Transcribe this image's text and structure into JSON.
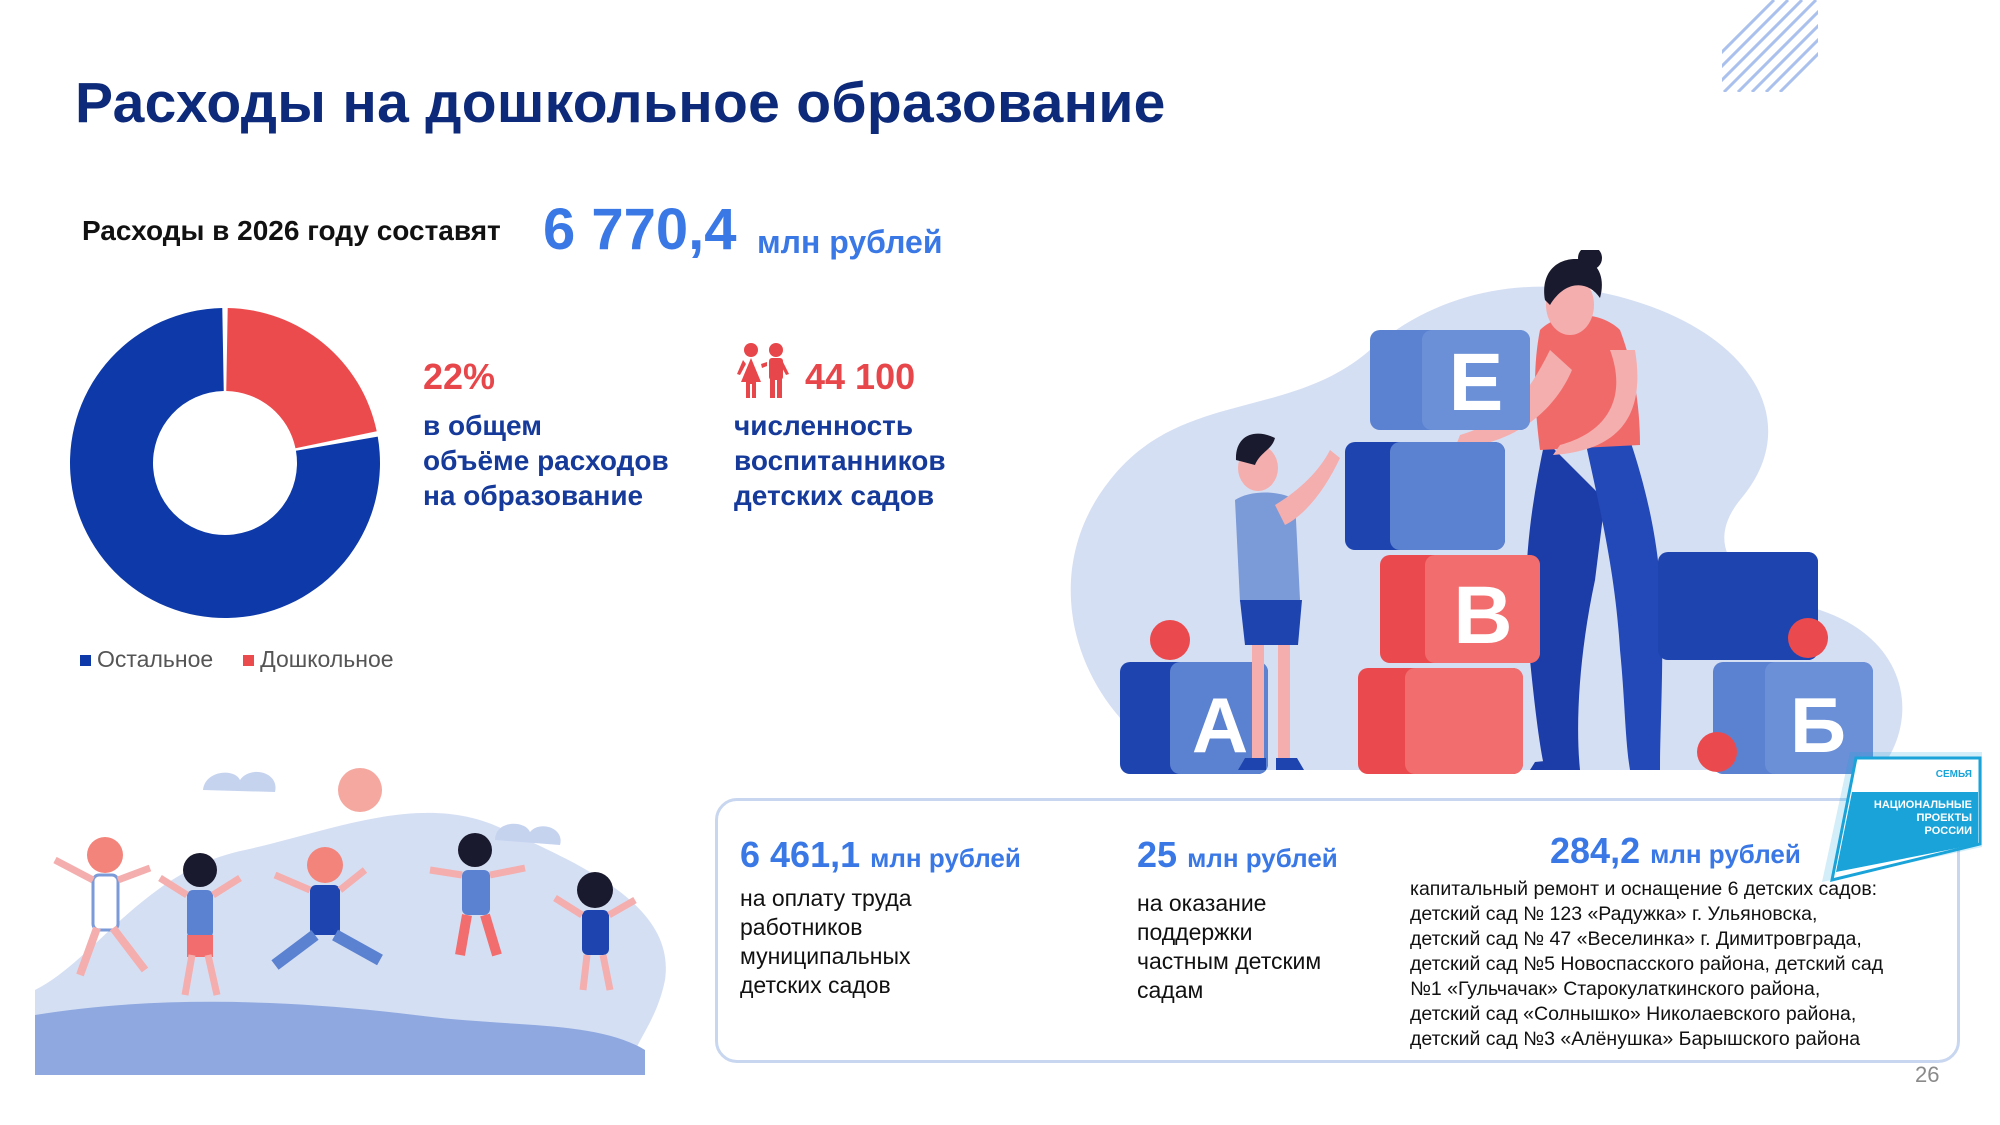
{
  "title": "Расходы на дошкольное образование",
  "lead": {
    "text": "Расходы в 2026 году составят",
    "value": "6 770,4",
    "unit": "млн рублей"
  },
  "stats": {
    "share": {
      "value": "22%",
      "lines": [
        "в общем",
        "объёме расходов",
        "на образование"
      ]
    },
    "children": {
      "icon": "children-icon",
      "value": "44 100",
      "lines": [
        "численность",
        "воспитанников",
        "детских садов"
      ]
    }
  },
  "chart_data": {
    "type": "pie",
    "donut": true,
    "categories": [
      "Остальное",
      "Дошкольное"
    ],
    "values": [
      78,
      22
    ],
    "colors": [
      "#0d3aa8",
      "#ec4b4e"
    ],
    "legend_position": "bottom-left"
  },
  "legend": {
    "items": [
      {
        "label": "Остальное",
        "color": "#0d3aa8"
      },
      {
        "label": "Дошкольное",
        "color": "#ec4b4e"
      }
    ]
  },
  "illustration": {
    "blocks": [
      "Е",
      "В",
      "А",
      "Б"
    ]
  },
  "info": {
    "col1": {
      "value": "6 461,1",
      "unit": "млн рублей",
      "lines": [
        "на оплату труда",
        "работников",
        "муниципальных",
        "детских садов"
      ]
    },
    "col2": {
      "value": "25",
      "unit": "млн рублей",
      "lines": [
        "на оказание",
        "поддержки",
        "частным детским",
        "садам"
      ]
    },
    "col3": {
      "value": "284,2",
      "unit": "млн рублей",
      "lines": [
        "капитальный ремонт и оснащение 6 детских садов:",
        "детский сад № 123 «Радужка» г. Ульяновска,",
        "детский сад № 47 «Веселинка» г. Димитровграда,",
        "детский сад №5 Новоспасского района, детский сад",
        "№1 «Гульчачак» Старокулаткинского района,",
        "детский сад «Солнышко» Николаевского района,",
        "детский сад №3 «Алёнушка» Барышского района"
      ]
    }
  },
  "logo": {
    "top": "СЕМЬЯ",
    "lines": [
      "НАЦИОНАЛЬНЫЕ",
      "ПРОЕКТЫ",
      "РОССИИ"
    ]
  },
  "page_number": "26",
  "colors": {
    "title": "#0d2a7a",
    "accent_blue": "#3a78e6",
    "accent_red": "#e7474a",
    "text_blue": "#163a9a"
  }
}
